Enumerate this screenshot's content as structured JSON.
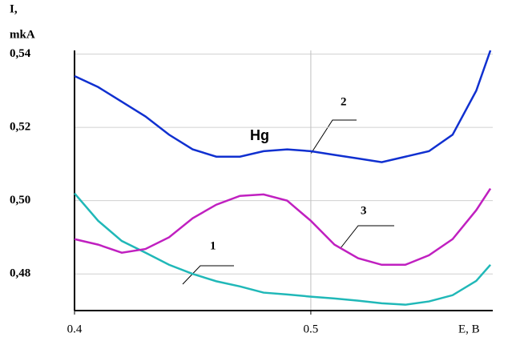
{
  "chart_data": {
    "type": "line",
    "y_label": [
      "I,",
      "mkA"
    ],
    "x_label": "E, B",
    "x": [
      0.4,
      0.41,
      0.42,
      0.43,
      0.44,
      0.45,
      0.46,
      0.47,
      0.48,
      0.49,
      0.5,
      0.51,
      0.52,
      0.53,
      0.54,
      0.55,
      0.56,
      0.57,
      0.576
    ],
    "series": [
      {
        "name": "1",
        "color": "#20b8b8",
        "values": [
          0.502,
          0.4945,
          0.489,
          0.4858,
          0.4825,
          0.48,
          0.478,
          0.4766,
          0.4749,
          0.4744,
          0.4738,
          0.4733,
          0.4727,
          0.472,
          0.4716,
          0.4725,
          0.4742,
          0.4781,
          0.4825
        ]
      },
      {
        "name": "2",
        "color": "#1030d0",
        "values": [
          0.534,
          0.531,
          0.527,
          0.523,
          0.518,
          0.514,
          0.512,
          0.512,
          0.5135,
          0.514,
          0.5135,
          0.5125,
          0.5115,
          0.5105,
          0.512,
          0.5135,
          0.518,
          0.53,
          0.541
        ]
      },
      {
        "name": "3",
        "color": "#c020c0",
        "values": [
          0.4895,
          0.488,
          0.4858,
          0.4868,
          0.49,
          0.4952,
          0.4989,
          0.5013,
          0.5017,
          0.5,
          0.4945,
          0.488,
          0.4843,
          0.4825,
          0.4825,
          0.4851,
          0.4895,
          0.4974,
          0.5033
        ]
      }
    ],
    "annotation": "Hg",
    "xlim": [
      0.4,
      0.577
    ],
    "ylim": [
      0.47,
      0.541
    ],
    "xticks": [
      0.4,
      0.5
    ],
    "yticks": [
      {
        "value": 0.48,
        "label": "0,48"
      },
      {
        "value": 0.5,
        "label": "0,50"
      },
      {
        "value": 0.52,
        "label": "0,52"
      },
      {
        "value": 0.54,
        "label": "0,54"
      }
    ],
    "grid": true
  }
}
